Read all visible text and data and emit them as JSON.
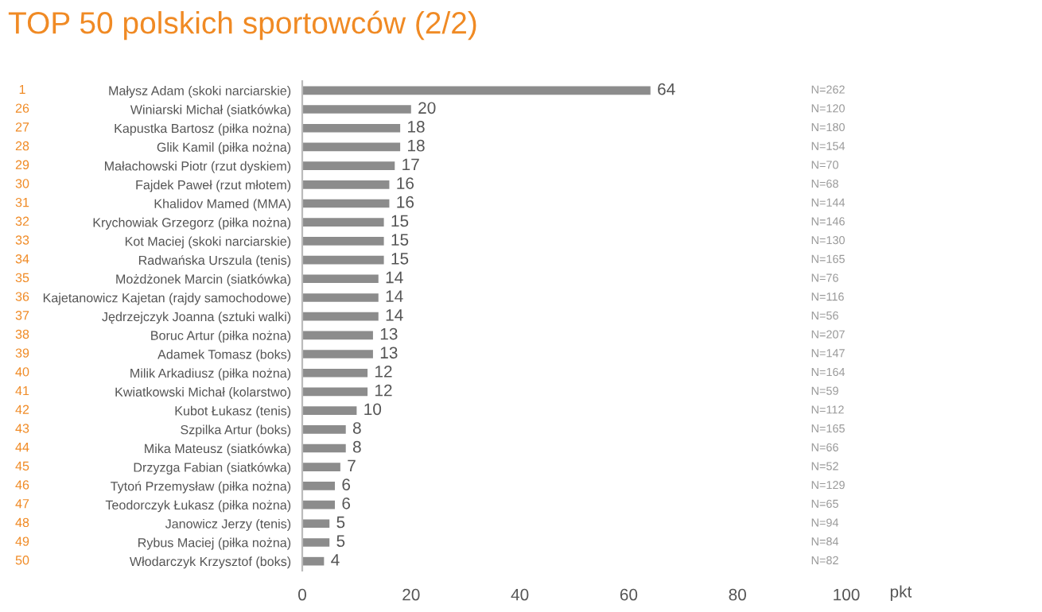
{
  "chart_data": {
    "type": "bar",
    "orientation": "horizontal",
    "title": "TOP 50 polskich sportowców (2/2)",
    "xlabel": "pkt",
    "categories": [
      "Małysz Adam (skoki narciarskie)",
      "Winiarski Michał (siatkówka)",
      "Kapustka Bartosz (piłka nożna)",
      "Glik Kamil (piłka nożna)",
      "Małachowski Piotr (rzut dyskiem)",
      "Fajdek Paweł (rzut młotem)",
      "Khalidov Mamed (MMA)",
      "Krychowiak Grzegorz (piłka nożna)",
      "Kot Maciej (skoki narciarskie)",
      "Radwańska Urszula (tenis)",
      "Możdżonek Marcin (siatkówka)",
      "Kajetanowicz Kajetan (rajdy samochodowe)",
      "Jędrzejczyk Joanna (sztuki walki)",
      "Boruc Artur (piłka nożna)",
      "Adamek Tomasz (boks)",
      "Milik Arkadiusz (piłka nożna)",
      "Kwiatkowski Michał (kolarstwo)",
      "Kubot Łukasz (tenis)",
      "Szpilka Artur (boks)",
      "Mika Mateusz (siatkówka)",
      "Drzyzga Fabian (siatkówka)",
      "Tytoń Przemysław (piłka nożna)",
      "Teodorczyk Łukasz (piłka nożna)",
      "Janowicz Jerzy (tenis)",
      "Rybus Maciej (piłka nożna)",
      "Włodarczyk Krzysztof (boks)"
    ],
    "values": [
      64,
      20,
      18,
      18,
      17,
      16,
      16,
      15,
      15,
      15,
      14,
      14,
      14,
      13,
      13,
      12,
      12,
      10,
      8,
      8,
      7,
      6,
      6,
      5,
      5,
      4
    ],
    "color": "#8c8c8c",
    "data_labels": true,
    "xlim": [
      0,
      100
    ],
    "xticks": [
      0,
      20,
      40,
      60,
      80,
      100
    ],
    "grid": false,
    "legend": false,
    "annotations": [
      "1",
      "26",
      "27",
      "28",
      "29",
      "30",
      "31",
      "32",
      "33",
      "34",
      "35",
      "36",
      "37",
      "38",
      "39",
      "40",
      "41",
      "42",
      "43",
      "44",
      "45",
      "46",
      "47",
      "48",
      "49",
      "50",
      "N=262",
      "N=120",
      "N=180",
      "N=154",
      "N=70",
      "N=68",
      "N=144",
      "N=146",
      "N=130",
      "N=165",
      "N=76",
      "N=116",
      "N=56",
      "N=207",
      "N=147",
      "N=164",
      "N=59",
      "N=112",
      "N=165",
      "N=66",
      "N=52",
      "N=129",
      "N=65",
      "N=94",
      "N=84",
      "N=82"
    ]
  }
}
